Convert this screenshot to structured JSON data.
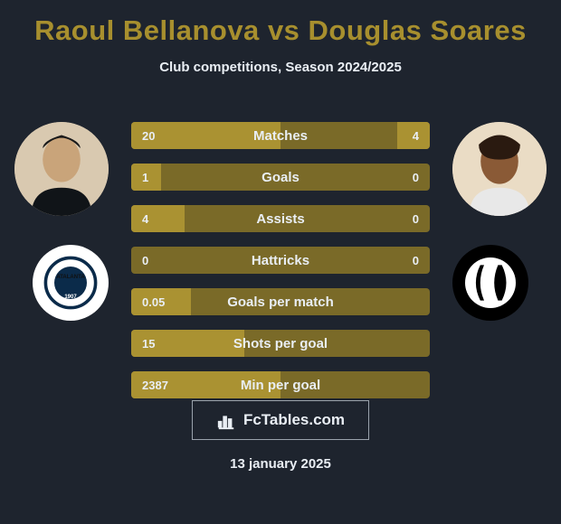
{
  "colors": {
    "background": "#1e242e",
    "accent": "#a78f2e",
    "text": "#e9eef4",
    "row_bg": "#7a6a28",
    "fill": "#aa9232",
    "brand_border": "#9aa3ad",
    "brand_text": "#e9eef4"
  },
  "title": {
    "player1": "Raoul Bellanova",
    "vs": "vs",
    "player2": "Douglas Soares"
  },
  "subtitle": "Club competitions, Season 2024/2025",
  "rows": [
    {
      "label": "Matches",
      "left": "20",
      "right": "4",
      "left_pct": 50,
      "right_pct": 11
    },
    {
      "label": "Goals",
      "left": "1",
      "right": "0",
      "left_pct": 10,
      "right_pct": 0
    },
    {
      "label": "Assists",
      "left": "4",
      "right": "0",
      "left_pct": 18,
      "right_pct": 0
    },
    {
      "label": "Hattricks",
      "left": "0",
      "right": "0",
      "left_pct": 0,
      "right_pct": 0
    },
    {
      "label": "Goals per match",
      "left": "0.05",
      "right": "",
      "left_pct": 20,
      "right_pct": 0
    },
    {
      "label": "Shots per goal",
      "left": "15",
      "right": "",
      "left_pct": 38,
      "right_pct": 0
    },
    {
      "label": "Min per goal",
      "left": "2387",
      "right": "",
      "left_pct": 50,
      "right_pct": 0
    }
  ],
  "brand": "FcTables.com",
  "date": "13 january 2025"
}
